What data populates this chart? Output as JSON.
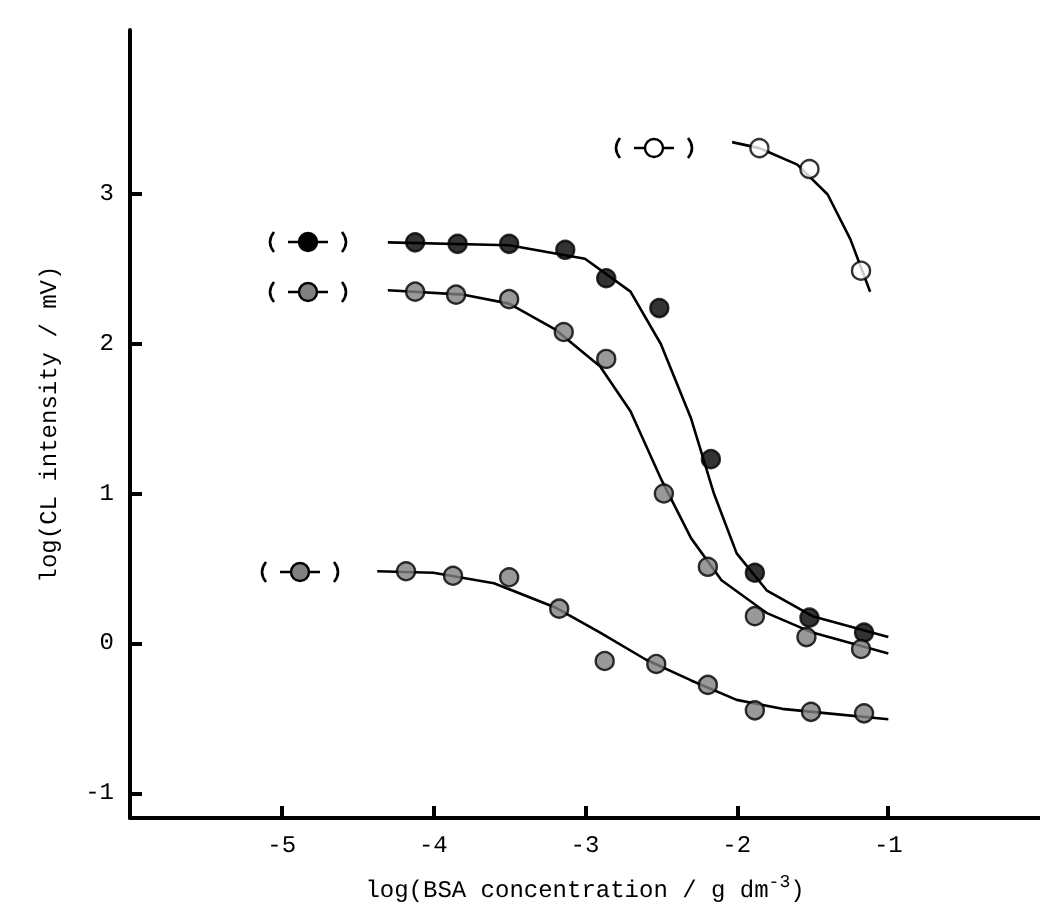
{
  "chart_data": {
    "type": "scatter",
    "xlabel": "log(BSA concentration / g dm$^{-3}$)",
    "ylabel": "log(CL intensity / mV)",
    "xlim": [
      -6,
      0
    ],
    "ylim": [
      -1.17,
      4.1
    ],
    "xticks": [
      -5,
      -4,
      -3,
      -2,
      -1
    ],
    "yticks": [
      -1,
      0,
      1,
      2,
      3
    ],
    "grid": false,
    "marker": "circle",
    "series": [
      {
        "color": "#ffffff",
        "x": [
          -1.85,
          -1.52,
          -1.18
        ],
        "values": [
          3.31,
          3.17,
          2.49
        ]
      },
      {
        "color": "#000000",
        "x": [
          -4.12,
          -3.84,
          -3.5,
          -3.13,
          -2.86,
          -2.51,
          -2.17,
          -1.88,
          -1.52,
          -1.16
        ],
        "values": [
          2.68,
          2.67,
          2.67,
          2.63,
          2.44,
          2.24,
          1.23,
          0.47,
          0.17,
          0.07
        ]
      },
      {
        "color": "#808080",
        "x": [
          -4.12,
          -3.85,
          -3.5,
          -3.14,
          -2.86,
          -2.48,
          -2.19,
          -1.88,
          -1.54,
          -1.18
        ],
        "values": [
          2.35,
          2.33,
          2.3,
          2.08,
          1.9,
          1.0,
          0.51,
          0.18,
          0.04,
          -0.04
        ]
      },
      {
        "color": "#808080",
        "x": [
          -4.18,
          -3.87,
          -3.5,
          -3.17,
          -2.87,
          -2.53,
          -2.19,
          -1.88,
          -1.51,
          -1.16
        ],
        "values": [
          0.48,
          0.45,
          0.44,
          0.23,
          -0.12,
          -0.14,
          -0.28,
          -0.45,
          -0.46,
          -0.47
        ]
      },
      {
        "type": "line",
        "marker": "none",
        "line_style": "solid",
        "color": "#000000",
        "x": [
          -2.03,
          -1.85,
          -1.6,
          -1.4,
          -1.25,
          -1.12
        ],
        "values": [
          3.35,
          3.31,
          3.2,
          3.0,
          2.7,
          2.35
        ]
      },
      {
        "type": "line",
        "marker": "none",
        "line_style": "solid",
        "color": "#000000",
        "x": [
          -4.3,
          -3.5,
          -3.0,
          -2.7,
          -2.5,
          -2.3,
          -2.15,
          -2.0,
          -1.8,
          -1.5,
          -1.0
        ],
        "values": [
          2.68,
          2.66,
          2.57,
          2.35,
          2.0,
          1.5,
          1.0,
          0.6,
          0.35,
          0.18,
          0.04
        ]
      },
      {
        "type": "line",
        "marker": "none",
        "line_style": "solid",
        "color": "#000000",
        "x": [
          -4.3,
          -3.8,
          -3.5,
          -3.2,
          -2.9,
          -2.7,
          -2.5,
          -2.3,
          -2.1,
          -1.8,
          -1.5,
          -1.0
        ],
        "values": [
          2.36,
          2.33,
          2.27,
          2.1,
          1.85,
          1.55,
          1.1,
          0.7,
          0.42,
          0.2,
          0.07,
          -0.07
        ]
      },
      {
        "type": "line",
        "marker": "none",
        "line_style": "solid",
        "color": "#000000",
        "x": [
          -4.37,
          -4.0,
          -3.6,
          -3.2,
          -2.9,
          -2.6,
          -2.3,
          -2.0,
          -1.7,
          -1.4,
          -1.0
        ],
        "values": [
          0.48,
          0.47,
          0.4,
          0.24,
          0.07,
          -0.11,
          -0.25,
          -0.38,
          -0.44,
          -0.47,
          -0.51
        ]
      }
    ]
  }
}
